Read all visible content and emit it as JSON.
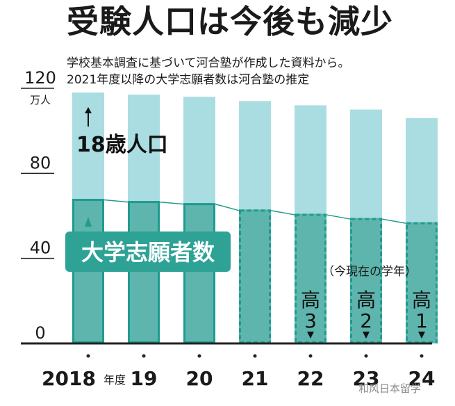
{
  "title": "受験人口は今後も減少",
  "subtitle_lines": [
    "学校基本調査に基づいて河合塾が作成した資料から。",
    "2021年度以降の大学志願者数は河合塾の推定"
  ],
  "watermark": "和风日本留学",
  "colors": {
    "population_bar": "#a9dde1",
    "applicant_bar": "#5db5ad",
    "applicant_line": "#1f9b8f",
    "label_box": "#2fa296",
    "axis": "#222222"
  },
  "annotations": {
    "population_label": "18歳人口",
    "applicant_label": "大学志願者数",
    "current_grade_caption": "（今現在の学年）",
    "grades": [
      {
        "year": "22",
        "text": "高3"
      },
      {
        "year": "23",
        "text": "高2"
      },
      {
        "year": "24",
        "text": "高1"
      }
    ]
  },
  "chart_data": {
    "type": "bar",
    "categories": [
      "2018",
      "19",
      "20",
      "21",
      "22",
      "23",
      "24"
    ],
    "category_suffix_first": "年度",
    "y_unit": "万人",
    "ylim": [
      0,
      120
    ],
    "y_ticks": [
      0,
      40,
      80,
      120
    ],
    "estimated_from": "21",
    "series": [
      {
        "name": "18歳人口",
        "values": [
          118,
          117,
          116,
          114,
          112,
          110,
          106
        ]
      },
      {
        "name": "大学志願者数",
        "values": [
          68,
          67,
          66,
          63,
          61,
          59,
          57
        ]
      }
    ]
  }
}
